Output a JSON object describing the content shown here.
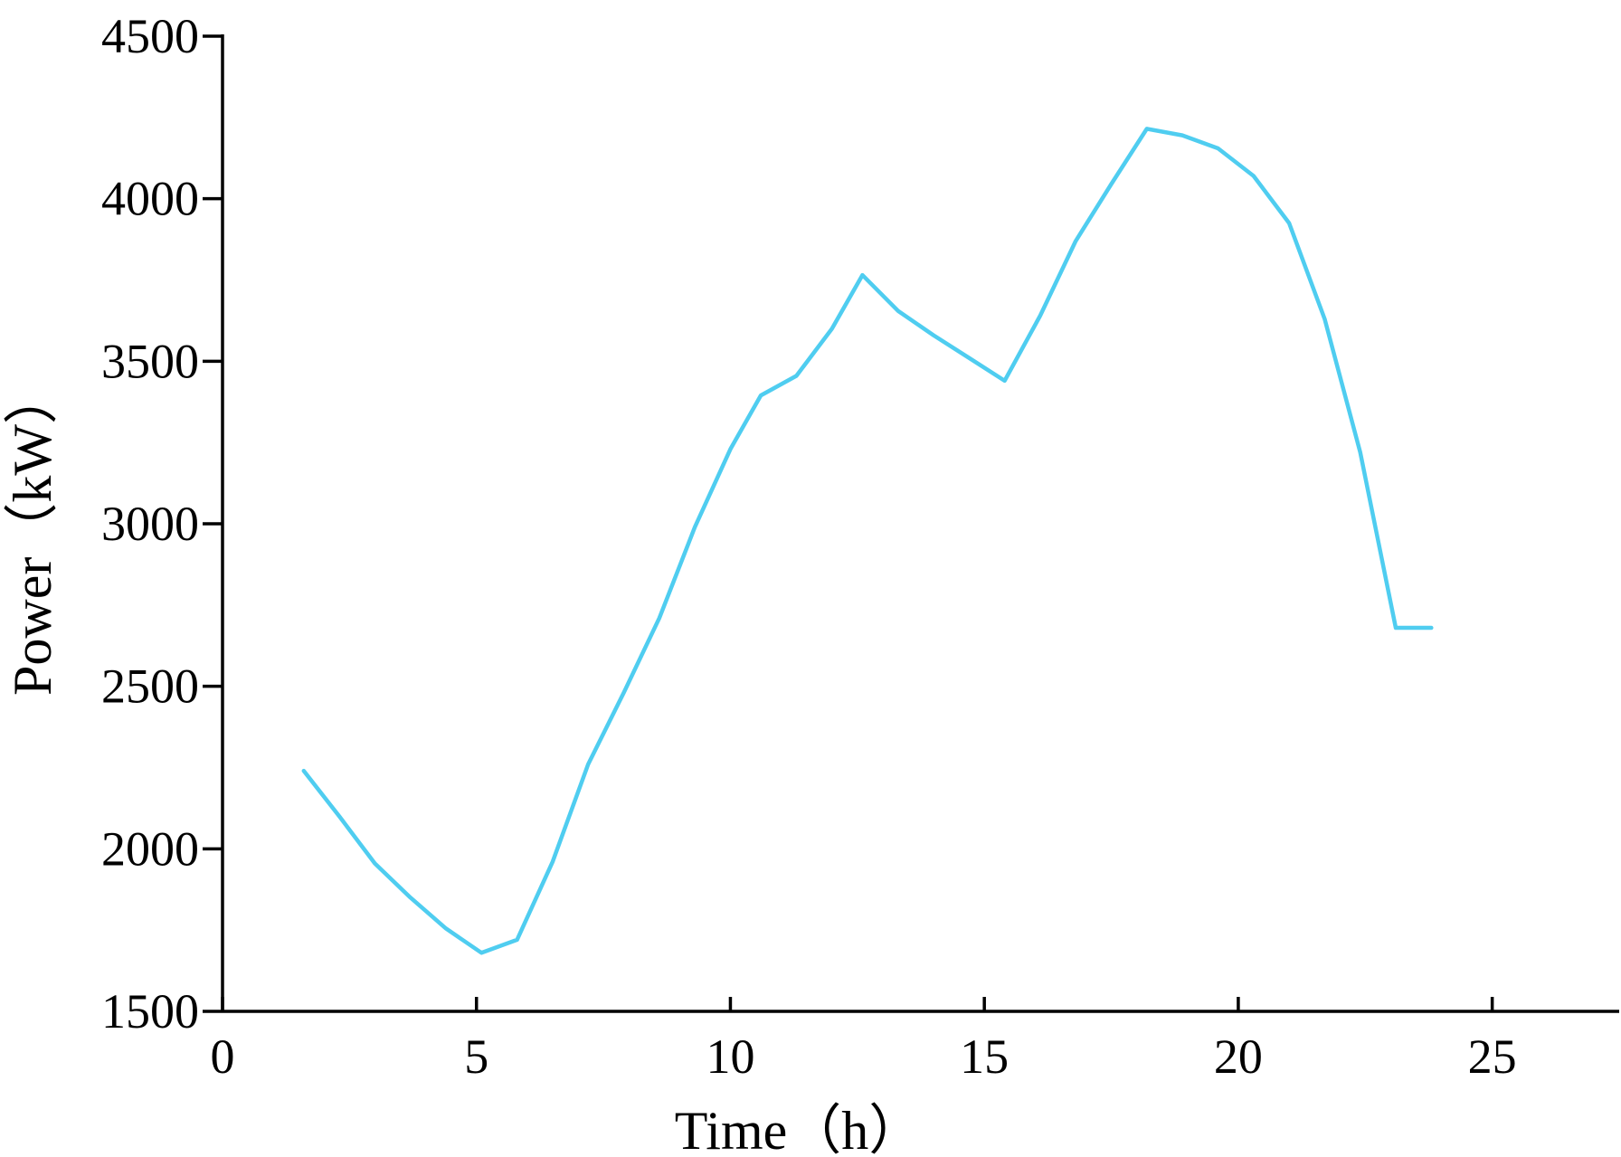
{
  "chart_data": {
    "type": "line",
    "title": "",
    "xlabel": "Time（h）",
    "ylabel": "Power（kW）",
    "xlim": [
      0,
      27.5
    ],
    "ylim": [
      1500,
      4500
    ],
    "xticks": [
      0,
      5,
      10,
      15,
      20,
      25
    ],
    "yticks": [
      1500,
      2000,
      2500,
      3000,
      3500,
      4000,
      4500
    ],
    "grid": false,
    "series": [
      {
        "color": "#4fcdf0",
        "x": [
          1.6,
          2.3,
          3.0,
          3.7,
          4.4,
          5.1,
          5.8,
          6.5,
          7.2,
          7.9,
          8.6,
          9.3,
          10.0,
          10.6,
          11.3,
          12.0,
          12.6,
          13.3,
          14.0,
          14.7,
          15.4,
          16.1,
          16.8,
          17.5,
          18.2,
          18.9,
          19.6,
          20.3,
          21.0,
          21.7,
          22.4,
          23.1,
          23.8
        ],
        "y": [
          2240,
          2100,
          1955,
          1850,
          1755,
          1680,
          1720,
          1960,
          2260,
          2480,
          2710,
          2990,
          3230,
          3395,
          3455,
          3600,
          3765,
          3655,
          3580,
          3510,
          3440,
          3640,
          3870,
          4045,
          4215,
          4195,
          4155,
          4070,
          3925,
          3630,
          3220,
          2680,
          2680
        ]
      }
    ]
  }
}
